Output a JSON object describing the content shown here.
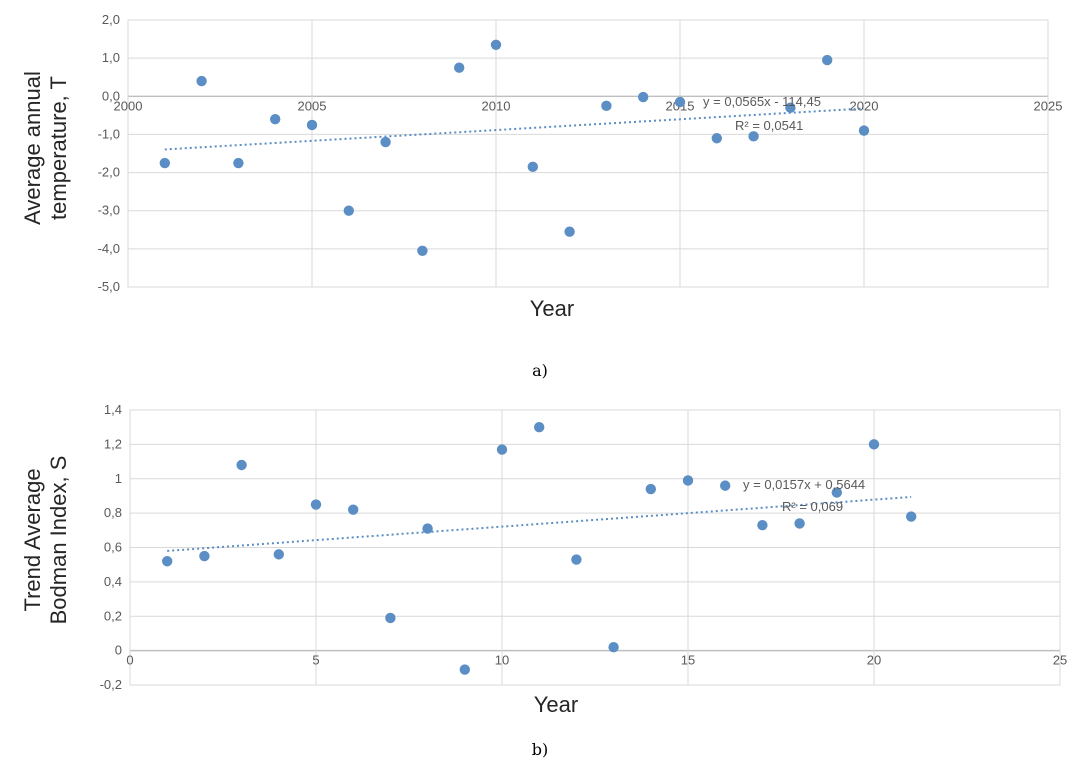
{
  "chart_data": [
    {
      "type": "scatter",
      "xlabel": "Year",
      "ylabel_lines": [
        "Average annual",
        "temperature, T"
      ],
      "xlim": [
        2000,
        2025
      ],
      "ylim": [
        -5,
        2
      ],
      "x_ticks": [
        2000,
        2005,
        2010,
        2015,
        2020,
        2025
      ],
      "x_tick_labels": [
        "2000",
        "2005",
        "2010",
        "2015",
        "2020",
        "2025"
      ],
      "y_ticks": [
        2,
        1,
        0,
        -1,
        -2,
        -3,
        -4,
        -5
      ],
      "y_tick_labels": [
        "2,0",
        "1,0",
        "0,0",
        "-1,0",
        "-2,0",
        "-3,0",
        "-4,0",
        "-5,0"
      ],
      "x_axis_at": 0,
      "grid": true,
      "points": [
        {
          "x": 2001,
          "y": -1.75
        },
        {
          "x": 2002,
          "y": 0.4
        },
        {
          "x": 2003,
          "y": -1.75
        },
        {
          "x": 2004,
          "y": -0.6
        },
        {
          "x": 2005,
          "y": -0.75
        },
        {
          "x": 2006,
          "y": -3.0
        },
        {
          "x": 2007,
          "y": -1.2
        },
        {
          "x": 2008,
          "y": -4.05
        },
        {
          "x": 2009,
          "y": 0.75
        },
        {
          "x": 2010,
          "y": 1.35
        },
        {
          "x": 2011,
          "y": -1.85
        },
        {
          "x": 2012,
          "y": -3.55
        },
        {
          "x": 2013,
          "y": -0.25
        },
        {
          "x": 2014,
          "y": -0.02
        },
        {
          "x": 2015,
          "y": -0.15
        },
        {
          "x": 2016,
          "y": -1.1
        },
        {
          "x": 2017,
          "y": -1.05
        },
        {
          "x": 2018,
          "y": -0.3
        },
        {
          "x": 2019,
          "y": 0.95
        },
        {
          "x": 2020,
          "y": -0.9
        }
      ],
      "trendline": {
        "slope": 0.0565,
        "intercept": -114.45,
        "x_range": [
          2001,
          2020
        ]
      },
      "equation": "y = 0,0565x - 114,45",
      "r_squared": "R² = 0,0541",
      "panel_label": "a)"
    },
    {
      "type": "scatter",
      "xlabel": "Year",
      "ylabel_lines": [
        "Trend Average",
        "Bodman Index, S"
      ],
      "xlim": [
        0,
        25
      ],
      "ylim": [
        -0.2,
        1.4
      ],
      "x_ticks": [
        0,
        5,
        10,
        15,
        20,
        25
      ],
      "x_tick_labels": [
        "0",
        "5",
        "10",
        "15",
        "20",
        "25"
      ],
      "y_ticks": [
        1.4,
        1.2,
        1,
        0.8,
        0.6,
        0.4,
        0.2,
        0,
        -0.2
      ],
      "y_tick_labels": [
        "1,4",
        "1,2",
        "1",
        "0,8",
        "0,6",
        "0,4",
        "0,2",
        "0",
        "-0,2"
      ],
      "x_axis_at": 0,
      "grid": true,
      "points": [
        {
          "x": 1,
          "y": 0.52
        },
        {
          "x": 2,
          "y": 0.55
        },
        {
          "x": 3,
          "y": 1.08
        },
        {
          "x": 4,
          "y": 0.56
        },
        {
          "x": 5,
          "y": 0.85
        },
        {
          "x": 6,
          "y": 0.82
        },
        {
          "x": 7,
          "y": 0.19
        },
        {
          "x": 8,
          "y": 0.71
        },
        {
          "x": 9,
          "y": -0.11
        },
        {
          "x": 10,
          "y": 1.17
        },
        {
          "x": 11,
          "y": 1.3
        },
        {
          "x": 12,
          "y": 0.53
        },
        {
          "x": 13,
          "y": 0.02
        },
        {
          "x": 14,
          "y": 0.94
        },
        {
          "x": 15,
          "y": 0.99
        },
        {
          "x": 16,
          "y": 0.96
        },
        {
          "x": 17,
          "y": 0.73
        },
        {
          "x": 18,
          "y": 0.74
        },
        {
          "x": 19,
          "y": 0.92
        },
        {
          "x": 20,
          "y": 1.2
        },
        {
          "x": 21,
          "y": 0.78
        }
      ],
      "trendline": {
        "slope": 0.0157,
        "intercept": 0.5644,
        "x_range": [
          1,
          21
        ]
      },
      "equation": "y = 0,0157x + 0,5644",
      "r_squared": "R² = 0,069",
      "panel_label": "b)"
    }
  ]
}
